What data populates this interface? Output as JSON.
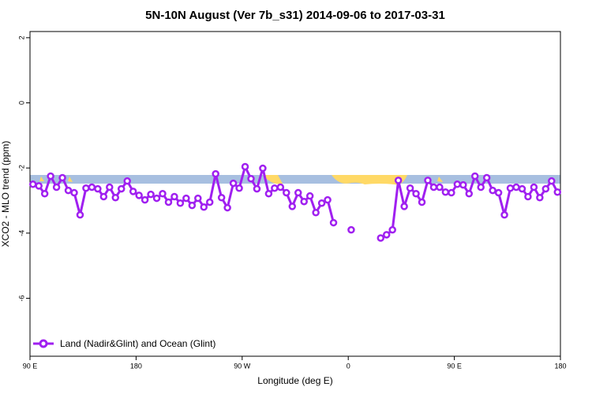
{
  "chart_data": {
    "type": "line",
    "title": "5N-10N August (Ver 7b_s31)   2014-09-06 to 2017-03-31",
    "xlabel": "Longitude (deg E)",
    "ylabel": "XCO2 - MLO trend (ppm)",
    "x": [
      92.5,
      97.5,
      102.5,
      107.5,
      112.5,
      117.5,
      122.5,
      127.5,
      132.5,
      137.5,
      142.5,
      147.5,
      152.5,
      157.5,
      162.5,
      167.5,
      172.5,
      177.5,
      182.5,
      187.5,
      192.5,
      197.5,
      202.5,
      207.5,
      212.5,
      217.5,
      222.5,
      227.5,
      232.5,
      237.5,
      242.5,
      247.5,
      252.5,
      257.5,
      262.5,
      267.5,
      272.5,
      277.5,
      282.5,
      287.5,
      292.5,
      297.5,
      302.5,
      307.5,
      312.5,
      317.5,
      322.5,
      327.5,
      332.5,
      337.5,
      342.5,
      347.5,
      352.5,
      357.5,
      362.5,
      367.5,
      372.5,
      377.5,
      382.5,
      387.5,
      392.5,
      397.5,
      402.5,
      407.5,
      412.5,
      417.5,
      422.5,
      427.5,
      432.5,
      437.5,
      442.5,
      447.5,
      452.5,
      457.5,
      462.5,
      467.5,
      472.5,
      477.5,
      482.5,
      487.5,
      492.5,
      497.5,
      502.5,
      507.5,
      512.5,
      517.5,
      522.5,
      527.5,
      532.5,
      537.5
    ],
    "series": [
      {
        "name": "Land (Nadir&Glint) and Ocean (Glint)",
        "color": "#a020f0",
        "values": [
          -2.5,
          -2.55,
          -2.79,
          -2.25,
          -2.59,
          -2.3,
          -2.69,
          -2.76,
          -3.44,
          -2.62,
          -2.59,
          -2.64,
          -2.88,
          -2.59,
          -2.91,
          -2.64,
          -2.4,
          -2.72,
          -2.84,
          -2.98,
          -2.81,
          -2.93,
          -2.79,
          -3.05,
          -2.88,
          -3.08,
          -2.93,
          -3.15,
          -2.93,
          -3.2,
          -3.05,
          -2.18,
          -2.91,
          -3.22,
          -2.47,
          -2.62,
          -1.96,
          -2.33,
          -2.64,
          -2.01,
          -2.79,
          -2.62,
          -2.59,
          -2.76,
          -3.18,
          -2.76,
          -3.03,
          -2.86,
          -3.37,
          -3.08,
          -2.98,
          -3.68,
          null,
          null,
          -3.9,
          null,
          null,
          null,
          null,
          -4.15,
          -4.05,
          -3.9,
          -2.38,
          -3.18,
          -2.62,
          -2.79,
          -3.05,
          -2.38,
          -2.59,
          -2.59,
          -2.74,
          -2.76,
          -2.5,
          -2.52,
          -2.79,
          -2.25,
          -2.59,
          -2.3,
          -2.69,
          -2.76,
          -3.44,
          -2.62,
          -2.59,
          -2.64,
          -2.88,
          -2.59,
          -2.91,
          -2.64,
          -2.4,
          -2.74
        ]
      }
    ],
    "xlim": [
      90,
      540
    ],
    "xticks": [
      {
        "value": 90,
        "label": "90 E"
      },
      {
        "value": 180,
        "label": "180"
      },
      {
        "value": 270,
        "label": "90 W"
      },
      {
        "value": 360,
        "label": "0"
      },
      {
        "value": 450,
        "label": "90 E"
      },
      {
        "value": 540,
        "label": "180"
      }
    ],
    "ylim": [
      -7.78,
      2.19
    ],
    "yticks": [
      2,
      0,
      -2,
      -4,
      -6
    ],
    "legend": "bottom-left"
  }
}
